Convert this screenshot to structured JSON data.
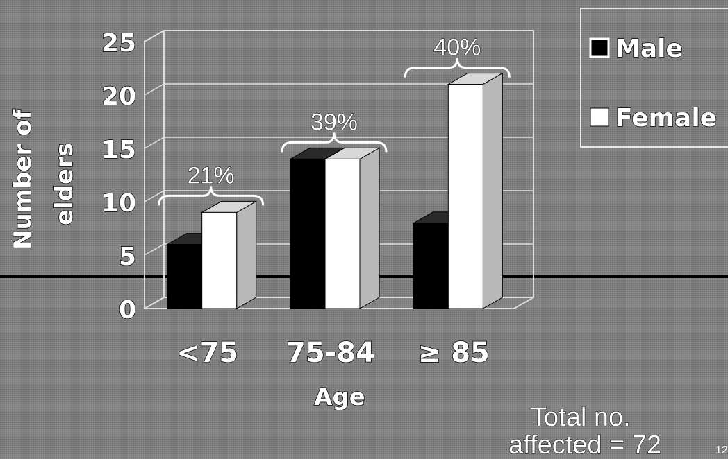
{
  "chart_data": {
    "type": "bar",
    "title": "",
    "xlabel": "Age",
    "ylabel": [
      "Number of",
      "elders"
    ],
    "categories": [
      "<75",
      "75-84",
      "≥ 85"
    ],
    "series": [
      {
        "name": "Male",
        "values": [
          6,
          14,
          8
        ]
      },
      {
        "name": "Female",
        "values": [
          9,
          14,
          21
        ]
      }
    ],
    "group_percentages": [
      "21%",
      "39%",
      "40%"
    ],
    "ylim": [
      0,
      25
    ],
    "yticks": [
      0,
      5,
      10,
      15,
      20,
      25
    ],
    "grid": true,
    "legend_position": "top-right",
    "colors": {
      "Male": "#000000",
      "Female": "#ffffff"
    }
  },
  "note": {
    "line1": "Total no.",
    "line2": "affected = 72"
  },
  "slide_number": "12"
}
